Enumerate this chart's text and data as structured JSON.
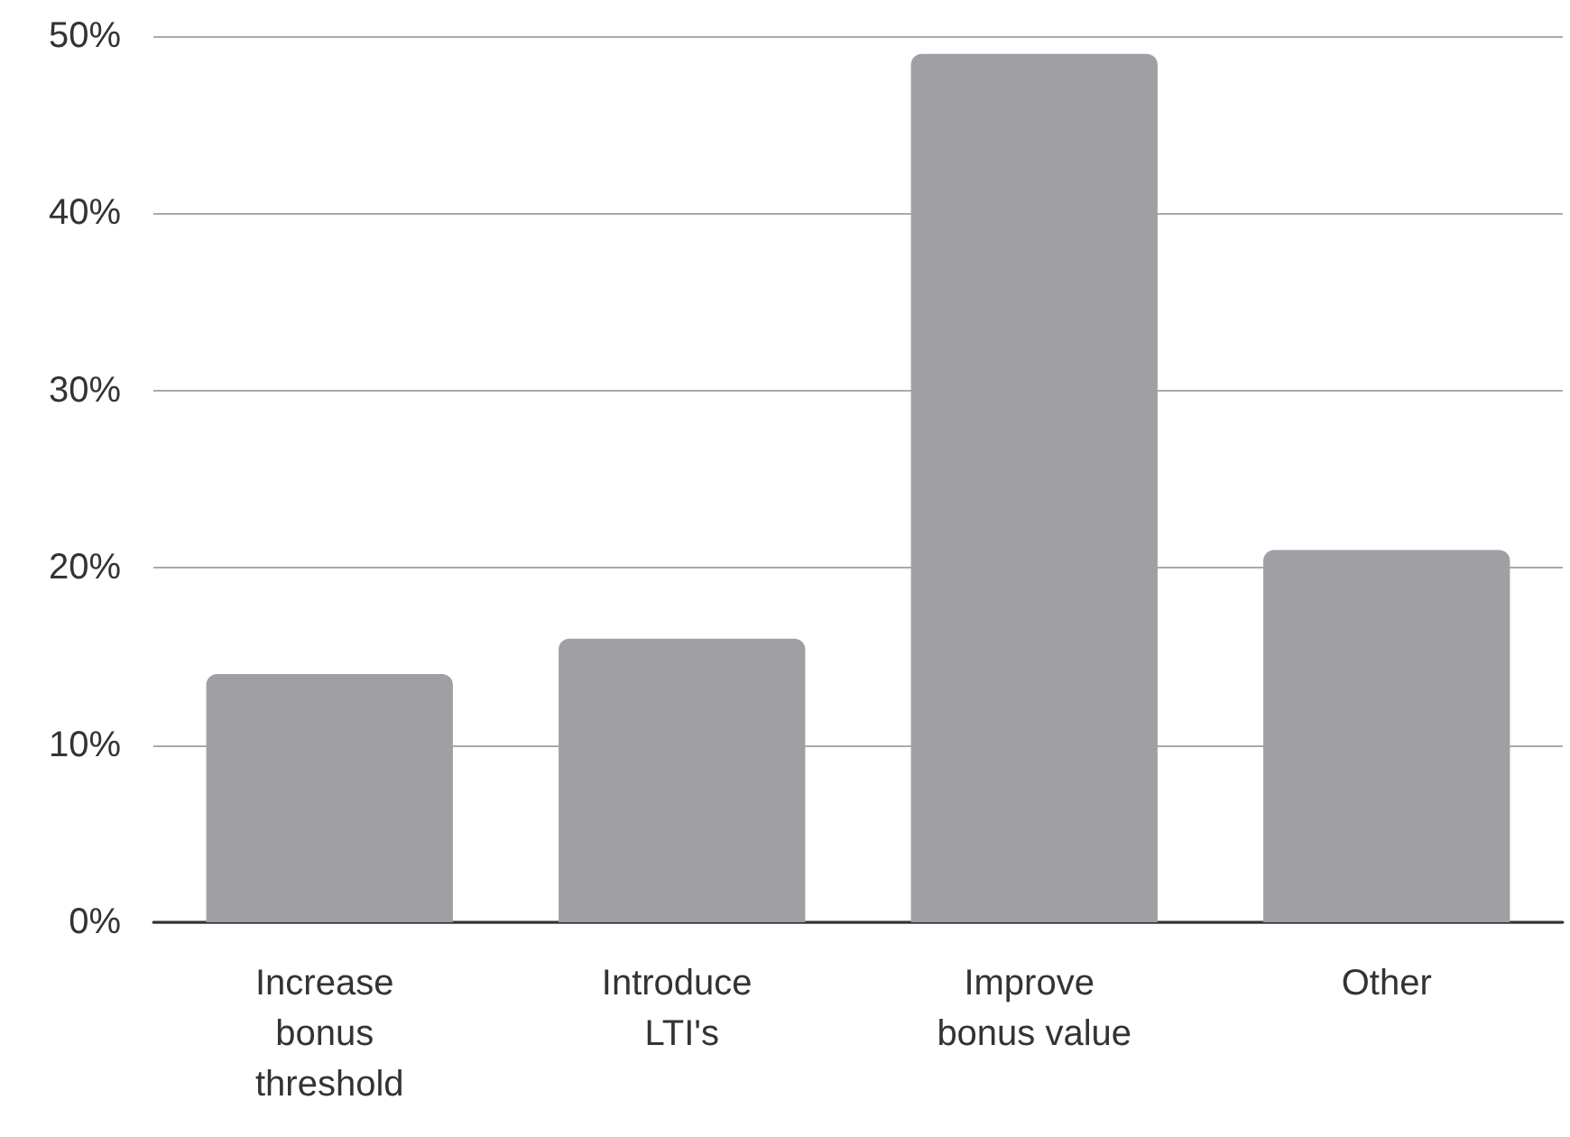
{
  "chart_data": {
    "type": "bar",
    "categories": [
      "Increase bonus threshold",
      "Introduce LTI's",
      "Improve bonus value",
      "Other"
    ],
    "values": [
      14,
      16,
      49,
      21
    ],
    "color": "#a0a0a4",
    "ylim": [
      0,
      50
    ],
    "yticks": [
      {
        "value": 0,
        "label": "0%"
      },
      {
        "value": 10,
        "label": "10%"
      },
      {
        "value": 20,
        "label": "20%"
      },
      {
        "value": 30,
        "label": "30%"
      },
      {
        "value": 40,
        "label": "40%"
      },
      {
        "value": 50,
        "label": "50%"
      }
    ],
    "grid": "y"
  }
}
